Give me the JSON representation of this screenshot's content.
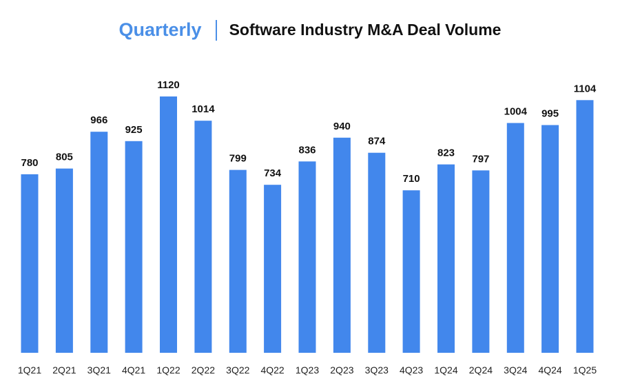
{
  "header": {
    "accent_title": "Quarterly",
    "main_title": "Software Industry M&A Deal Volume"
  },
  "colors": {
    "bar": "#4287ec",
    "accent": "#4a8fe7",
    "text": "#111111"
  },
  "chart_data": {
    "type": "bar",
    "title": "Software Industry M&A Deal Volume",
    "subtitle": "Quarterly",
    "xlabel": "",
    "ylabel": "",
    "grid": false,
    "legend": "none",
    "ylim": [
      0,
      1120
    ],
    "categories": [
      "1Q21",
      "2Q21",
      "3Q21",
      "4Q21",
      "1Q22",
      "2Q22",
      "3Q22",
      "4Q22",
      "1Q23",
      "2Q23",
      "3Q23",
      "4Q23",
      "1Q24",
      "2Q24",
      "3Q24",
      "4Q24",
      "1Q25"
    ],
    "values": [
      780,
      805,
      966,
      925,
      1120,
      1014,
      799,
      734,
      836,
      940,
      874,
      710,
      823,
      797,
      1004,
      995,
      1104
    ]
  }
}
